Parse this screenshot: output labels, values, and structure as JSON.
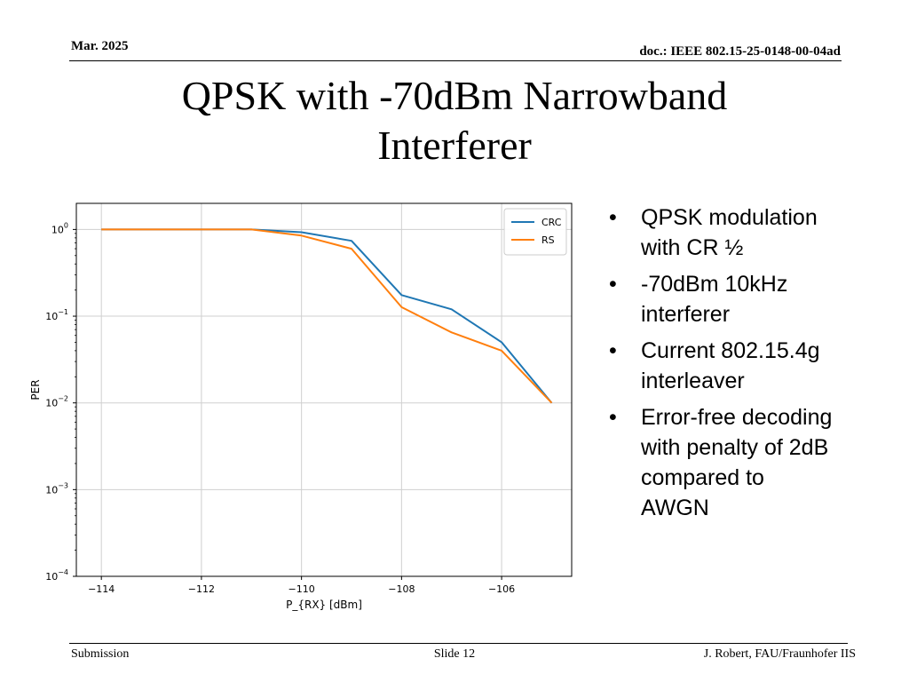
{
  "header": {
    "date": "Mar. 2025",
    "doc_id": "doc.: IEEE 802.15-25-0148-00-04ad"
  },
  "slide": {
    "title_line1": "QPSK with -70dBm Narrowband",
    "title_line2": "Interferer"
  },
  "bullets": [
    {
      "marker": "•",
      "lines": [
        "QPSK modulation",
        "with CR ½"
      ]
    },
    {
      "marker": "•",
      "lines": [
        "-70dBm 10kHz",
        "interferer"
      ]
    },
    {
      "marker": "•",
      "lines": [
        "Current 802.15.4g",
        "interleaver"
      ]
    },
    {
      "marker": "•",
      "lines": [
        "Error-free decoding",
        "with penalty of 2dB",
        "compared to",
        "AWGN"
      ]
    }
  ],
  "footer": {
    "left": "Submission",
    "center": "Slide 12",
    "right": "J. Robert, FAU/Fraunhofer IIS"
  },
  "chart_data": {
    "type": "line",
    "xlabel": "P_{RX} [dBm]",
    "ylabel": "PER",
    "y_scale": "log",
    "xlim": [
      -114.5,
      -104.6
    ],
    "ylim": [
      0.0001,
      2
    ],
    "grid": true,
    "legend_position": "top-right",
    "x_ticks": [
      -114,
      -112,
      -110,
      -108,
      -106
    ],
    "x_tick_labels": [
      "−114",
      "−112",
      "−110",
      "−108",
      "−106"
    ],
    "y_ticks": [
      {
        "value": 1,
        "base": "10",
        "exp": "0"
      },
      {
        "value": 0.1,
        "base": "10",
        "exp": "−1"
      },
      {
        "value": 0.01,
        "base": "10",
        "exp": "−2"
      },
      {
        "value": 0.001,
        "base": "10",
        "exp": "−3"
      },
      {
        "value": 0.0001,
        "base": "10",
        "exp": "−4"
      }
    ],
    "x": [
      -114,
      -113,
      -112,
      -111,
      -110,
      -109,
      -108,
      -107,
      -106,
      -105
    ],
    "series": [
      {
        "name": "CRC",
        "color": "#1f77b4",
        "values": [
          1,
          1,
          1,
          1,
          0.93,
          0.74,
          0.175,
          0.12,
          0.05,
          0.01
        ]
      },
      {
        "name": "RS",
        "color": "#ff7f0e",
        "values": [
          1,
          1,
          1,
          1,
          0.85,
          0.6,
          0.127,
          0.065,
          0.04,
          0.01
        ]
      }
    ]
  }
}
